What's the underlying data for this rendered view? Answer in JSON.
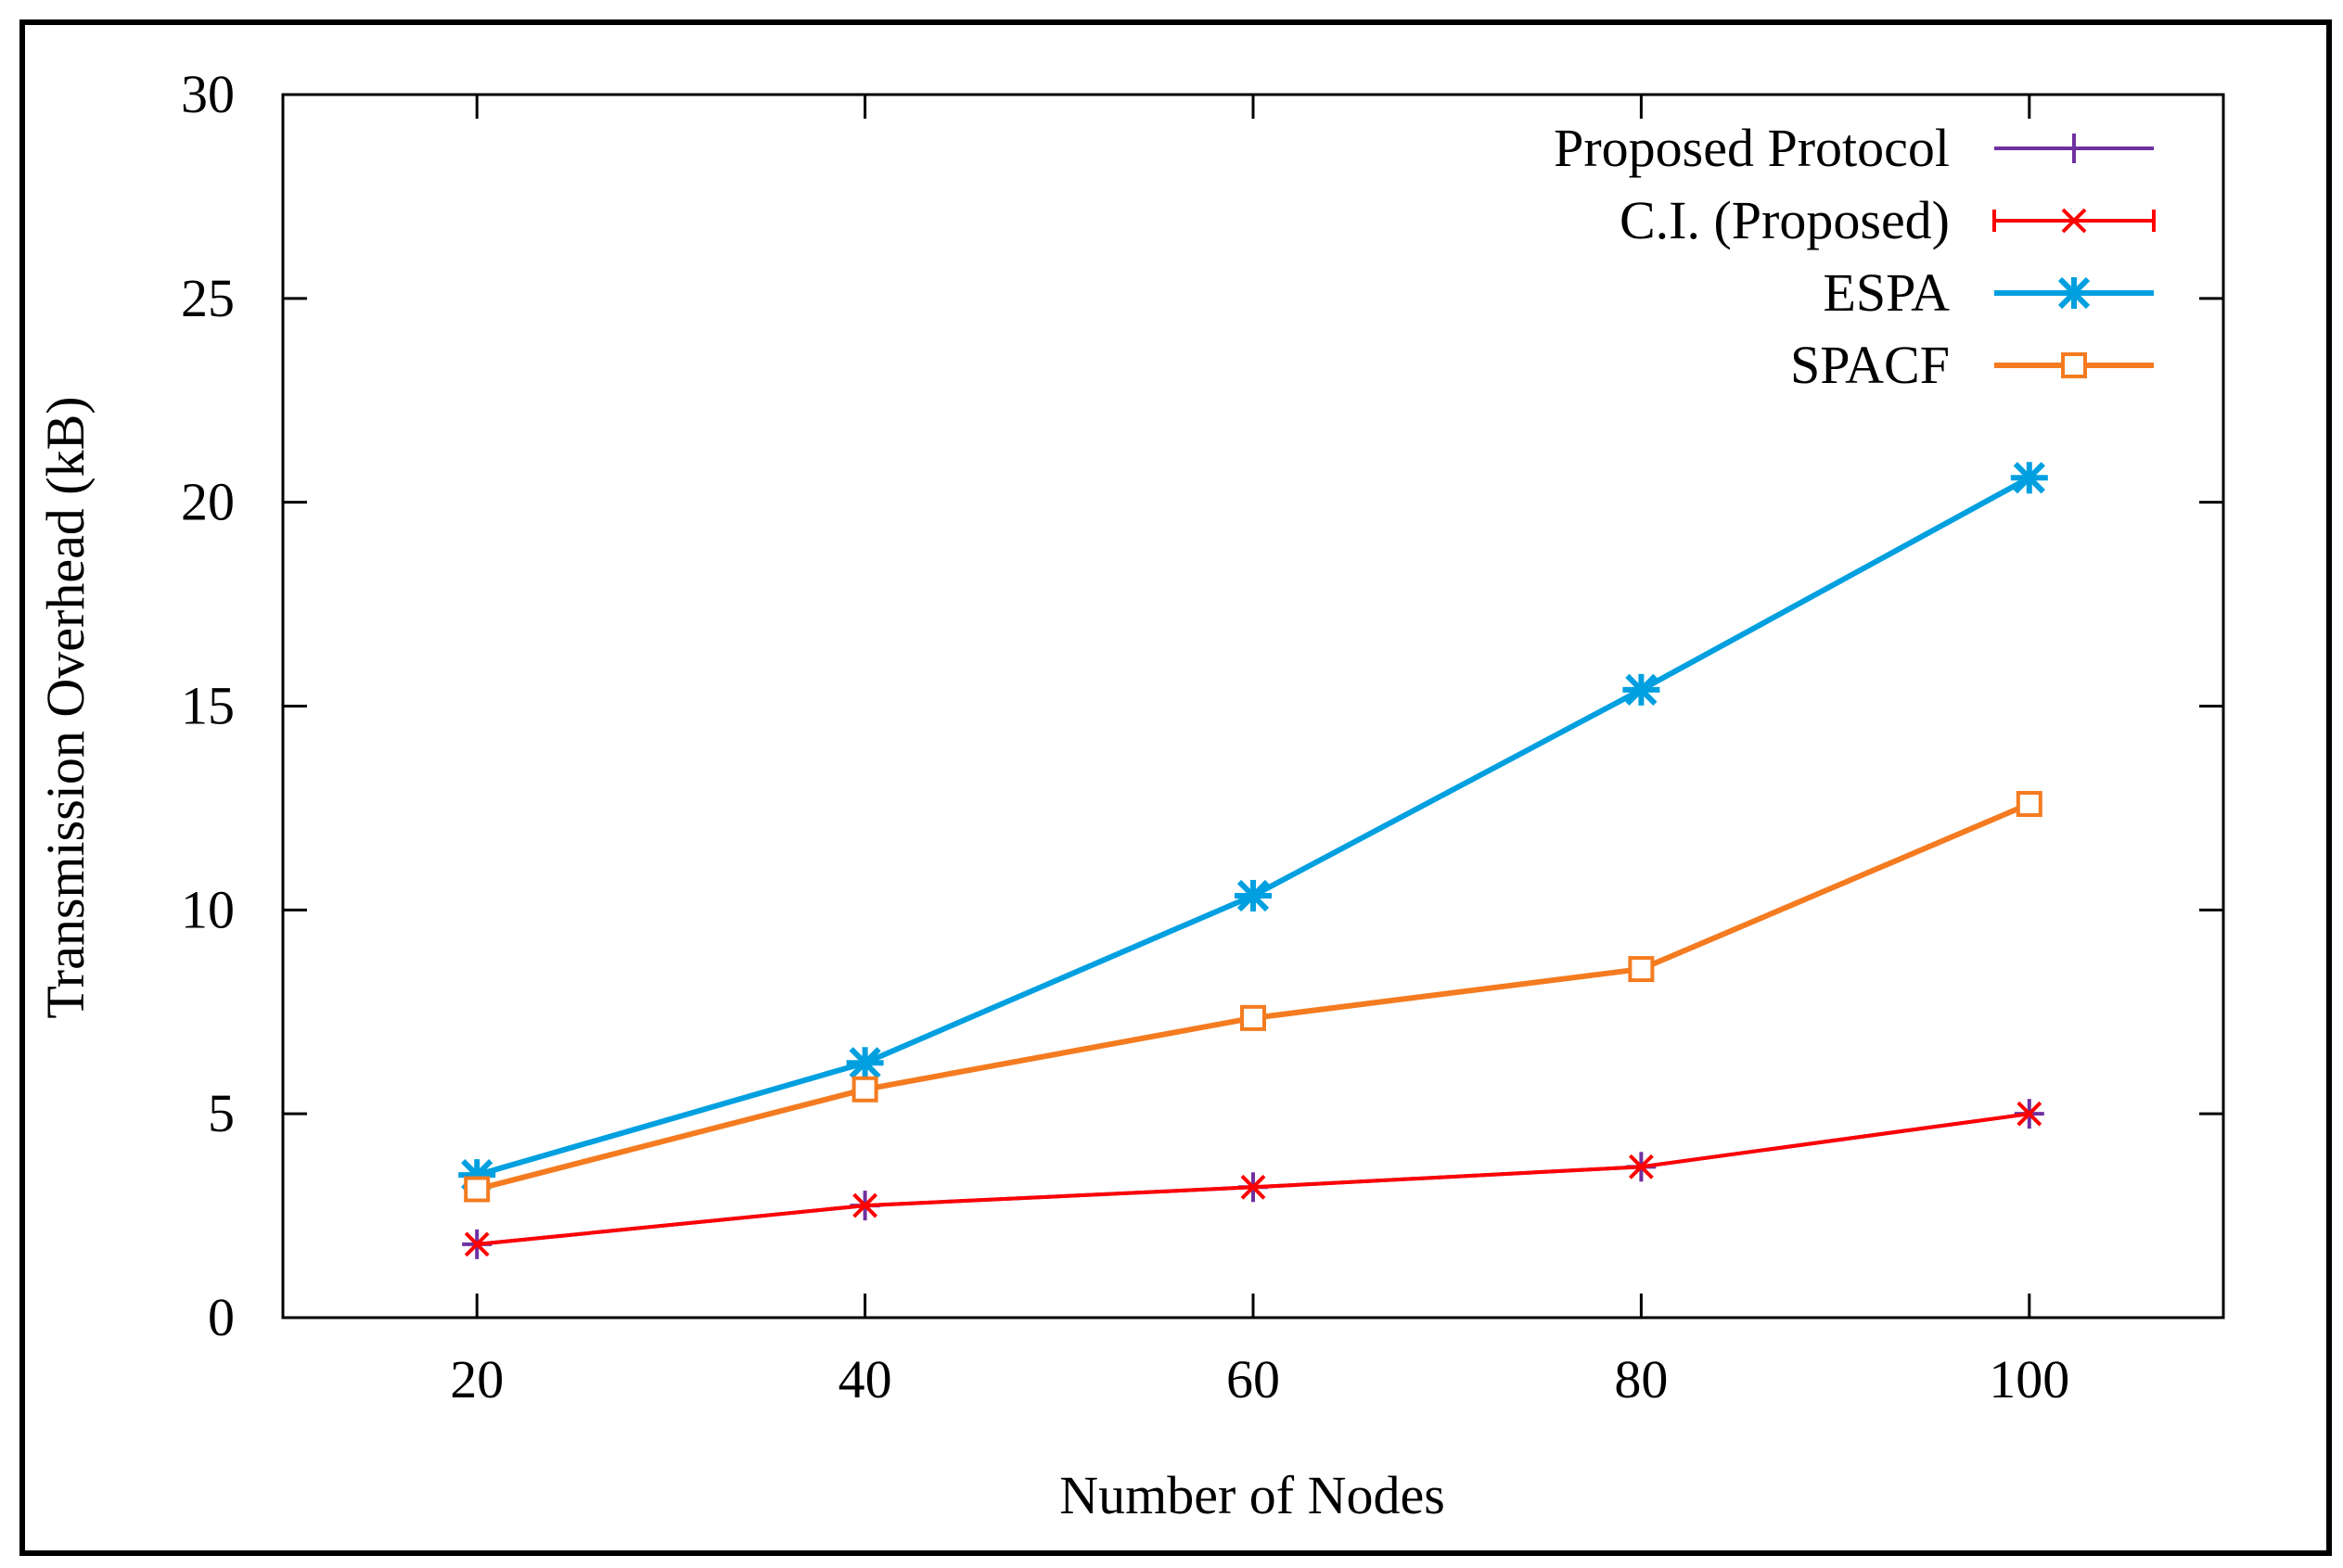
{
  "chart_data": {
    "type": "line",
    "title": "",
    "xlabel": "Number of Nodes",
    "ylabel": "Transmission Overhead (kB)",
    "x": [
      20,
      40,
      60,
      80,
      100
    ],
    "xlim": [
      10,
      110
    ],
    "ylim": [
      0,
      30
    ],
    "xticks": [
      20,
      40,
      60,
      80,
      100
    ],
    "yticks": [
      0,
      5,
      10,
      15,
      20,
      25,
      30
    ],
    "grid": false,
    "legend_position": "top-right",
    "series": [
      {
        "name": "Proposed Protocol",
        "color": "#7030a0",
        "marker": "plus",
        "values": [
          1.8,
          2.75,
          3.2,
          3.7,
          5.0
        ]
      },
      {
        "name": "C.I. (Proposed)",
        "color": "#ff0000",
        "marker": "cross",
        "values": [
          1.8,
          2.75,
          3.2,
          3.7,
          5.0
        ]
      },
      {
        "name": "ESPA",
        "color": "#00a0e0",
        "marker": "asterisk",
        "values": [
          3.5,
          6.25,
          10.35,
          15.4,
          20.6
        ]
      },
      {
        "name": "SPACF",
        "color": "#f47b20",
        "marker": "square",
        "values": [
          3.15,
          5.6,
          7.35,
          8.55,
          12.6
        ]
      }
    ]
  }
}
